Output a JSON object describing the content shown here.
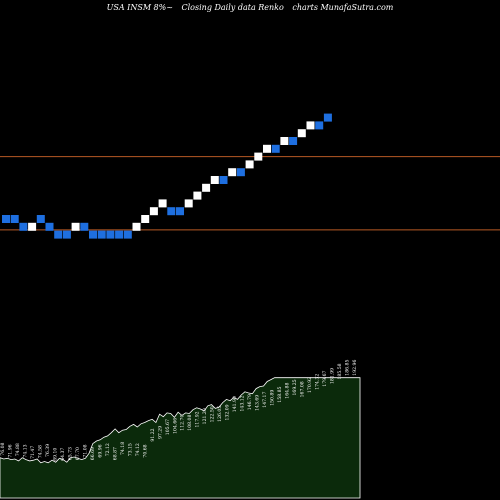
{
  "header": {
    "ticker": "USA INSM 8%~",
    "desc": "Closing Daily data Renko",
    "site": "charts MunafaSutra.com"
  },
  "colors": {
    "background": "#000000",
    "up_brick": "#ffffff",
    "down_brick": "#1e6fe0",
    "ref_line": "#b85a24",
    "volume_fill": "#0b2a0b",
    "volume_stroke": "#ffffff"
  },
  "chart_data": {
    "type": "renko",
    "brick_levels": [
      22,
      22,
      21,
      21,
      22,
      21,
      20,
      20,
      21,
      21,
      20,
      20,
      20,
      20,
      20,
      21,
      22,
      23,
      24,
      23,
      23,
      24,
      25,
      26,
      27,
      27,
      28,
      28,
      29,
      30,
      31,
      31,
      32,
      32,
      33,
      34,
      34,
      35
    ],
    "brick_direction": [
      "d",
      "d",
      "d",
      "u",
      "d",
      "d",
      "d",
      "d",
      "u",
      "d",
      "d",
      "d",
      "d",
      "d",
      "d",
      "u",
      "u",
      "u",
      "u",
      "d",
      "d",
      "u",
      "u",
      "u",
      "u",
      "d",
      "u",
      "d",
      "u",
      "u",
      "u",
      "d",
      "u",
      "d",
      "u",
      "u",
      "d",
      "d"
    ],
    "reference_levels": [
      30,
      20.6
    ],
    "volume_values": [
      63,
      61,
      62,
      60,
      61,
      58,
      63,
      60,
      58,
      59,
      61,
      55,
      57,
      55,
      59,
      56,
      62,
      60,
      56,
      63,
      64,
      62,
      60,
      62,
      70,
      85,
      89,
      91,
      95,
      97,
      102,
      108,
      102,
      106,
      107,
      112,
      115,
      111,
      116,
      118,
      121,
      123,
      118,
      131,
      127,
      133,
      132,
      126,
      134,
      129,
      133,
      132,
      138,
      141,
      139,
      136,
      144,
      146,
      140,
      142,
      149,
      154,
      152,
      157,
      154,
      161,
      166,
      164,
      163,
      171,
      174,
      175,
      182,
      185,
      188,
      188,
      188,
      188,
      188,
      188,
      188,
      188,
      188,
      188,
      188,
      188,
      188,
      188,
      188,
      188,
      188,
      188,
      188,
      188,
      188,
      188,
      188,
      188
    ],
    "volume_labels": [
      {
        "t": "76.08",
        "v": 63
      },
      {
        "t": "71.96",
        "v": 60
      },
      {
        "t": "74.88",
        "v": 62
      },
      {
        "t": "74.13",
        "v": 60
      },
      {
        "t": "71.47",
        "v": 58
      },
      {
        "t": "74.58",
        "v": 59
      },
      {
        "t": "76.39",
        "v": 61
      },
      {
        "t": "69.10",
        "v": 55
      },
      {
        "t": "64.37",
        "v": 55
      },
      {
        "t": "65.73",
        "v": 56
      },
      {
        "t": "67.70",
        "v": 56
      },
      {
        "t": "71.08",
        "v": 60
      },
      {
        "t": "66.69",
        "v": 56
      },
      {
        "t": "69.96",
        "v": 60
      },
      {
        "t": "72.12",
        "v": 62
      },
      {
        "t": "68.87",
        "v": 56
      },
      {
        "t": "74.18",
        "v": 64
      },
      {
        "t": "73.15",
        "v": 62
      },
      {
        "t": "74.12",
        "v": 62
      },
      {
        "t": "70.68",
        "v": 60
      },
      {
        "t": "91.22",
        "v": 85
      },
      {
        "t": "97.29",
        "v": 89
      },
      {
        "t": "105.67",
        "v": 95
      },
      {
        "t": "104.66",
        "v": 97
      },
      {
        "t": "112.70",
        "v": 102
      },
      {
        "t": "108.08",
        "v": 102
      },
      {
        "t": "117.92",
        "v": 107
      },
      {
        "t": "121.29",
        "v": 112
      },
      {
        "t": "122.50",
        "v": 115
      },
      {
        "t": "126.05",
        "v": 116
      },
      {
        "t": "132.09",
        "v": 118
      },
      {
        "t": "141.90",
        "v": 131
      },
      {
        "t": "143.12",
        "v": 132
      },
      {
        "t": "146.79",
        "v": 134
      },
      {
        "t": "143.69",
        "v": 133
      },
      {
        "t": "147.17",
        "v": 138
      },
      {
        "t": "150.89",
        "v": 141
      },
      {
        "t": "158.85",
        "v": 146
      },
      {
        "t": "164.88",
        "v": 152
      },
      {
        "t": "169.25",
        "v": 157
      },
      {
        "t": "167.08",
        "v": 154
      },
      {
        "t": "170.92",
        "v": 161
      },
      {
        "t": "174.32",
        "v": 166
      },
      {
        "t": "179.67",
        "v": 171
      },
      {
        "t": "181.99",
        "v": 175
      },
      {
        "t": "185.58",
        "v": 182
      },
      {
        "t": "186.85",
        "v": 188
      },
      {
        "t": "192.96",
        "v": 188
      }
    ]
  }
}
